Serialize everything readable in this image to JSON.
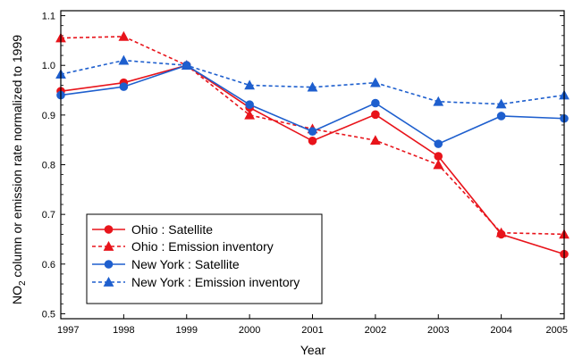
{
  "chart_data": {
    "type": "line",
    "title": "",
    "xlabel": "Year",
    "ylabel": {
      "prefix": "NO",
      "subscript": "2",
      "suffix": " column or emission rate normalized to 1999"
    },
    "x": [
      1997,
      1998,
      1999,
      2000,
      2001,
      2002,
      2003,
      2004,
      2005
    ],
    "x_tick_labels": [
      "1997",
      "1998",
      "1999",
      "2000",
      "2001",
      "2002",
      "2003",
      "2004",
      "2005"
    ],
    "xlim": [
      1997,
      2005
    ],
    "ylim": [
      0.49,
      1.11
    ],
    "y_ticks": [
      0.5,
      0.6,
      0.7,
      0.8,
      0.9,
      1.0,
      1.1
    ],
    "y_tick_labels": [
      "0.5",
      "0.6",
      "0.7",
      "0.8",
      "0.9",
      "1.0",
      "1.1"
    ],
    "grid": false,
    "legend_position": "bottom-left",
    "series": [
      {
        "name": "Ohio : Satellite",
        "color": "#e8141b",
        "dash": "solid",
        "marker": "circle",
        "values": [
          0.948,
          0.965,
          1.0,
          0.915,
          0.848,
          0.901,
          0.817,
          0.66,
          0.62
        ]
      },
      {
        "name": "Ohio : Emission inventory",
        "color": "#e8141b",
        "dash": "dashed",
        "marker": "triangle",
        "values": [
          1.055,
          1.058,
          1.0,
          0.9,
          0.872,
          0.849,
          0.8,
          0.663,
          0.66
        ]
      },
      {
        "name": "New York : Satellite",
        "color": "#1e5fce",
        "dash": "solid",
        "marker": "circle",
        "values": [
          0.94,
          0.957,
          1.0,
          0.921,
          0.867,
          0.924,
          0.842,
          0.898,
          0.893
        ]
      },
      {
        "name": "New York : Emission inventory",
        "color": "#1e5fce",
        "dash": "dashed",
        "marker": "triangle",
        "values": [
          0.982,
          1.01,
          1.0,
          0.96,
          0.956,
          0.965,
          0.927,
          0.922,
          0.94
        ]
      }
    ]
  }
}
